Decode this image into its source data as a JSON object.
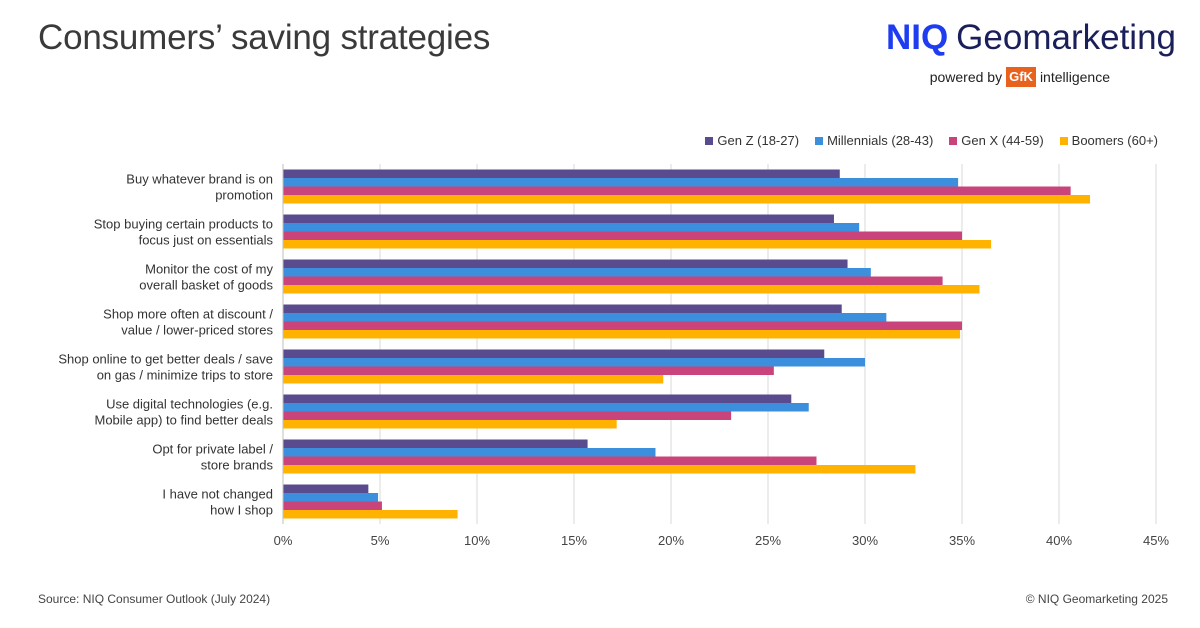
{
  "header": {
    "title": "Consumers’ saving strategies",
    "brand_niq": "NIQ",
    "brand_name": "Geomarketing",
    "powered_by": "powered by",
    "gfk": "GfK",
    "intelligence": "intelligence"
  },
  "footer": {
    "source": "Source: NIQ Consumer Outlook (July 2024)",
    "copyright": "© NIQ Geomarketing 2025"
  },
  "chart_data": {
    "type": "bar",
    "orientation": "horizontal",
    "title": "Consumers’ saving strategies",
    "xlabel": "",
    "ylabel": "",
    "xlim": [
      0,
      45
    ],
    "x_ticks": [
      "0%",
      "5%",
      "10%",
      "15%",
      "20%",
      "25%",
      "30%",
      "35%",
      "40%",
      "45%"
    ],
    "grid": true,
    "legend_position": "top-right",
    "categories": [
      [
        "Buy whatever brand is on",
        "promotion"
      ],
      [
        "Stop buying certain products to",
        "focus just on essentials"
      ],
      [
        "Monitor the cost of my",
        "overall basket of goods"
      ],
      [
        "Shop more often at discount /",
        "value / lower-priced stores"
      ],
      [
        "Shop online to get better deals / save",
        "on gas / minimize trips to store"
      ],
      [
        "Use digital technologies (e.g.",
        "Mobile app) to find better deals"
      ],
      [
        "Opt for private label /",
        "store brands"
      ],
      [
        "I have not changed",
        "how I shop"
      ]
    ],
    "series": [
      {
        "name": "Gen Z (18-27)",
        "color": "#5a4a8e",
        "values": [
          28.7,
          28.4,
          29.1,
          28.8,
          27.9,
          26.2,
          15.7,
          4.4
        ]
      },
      {
        "name": "Millennials (28-43)",
        "color": "#3b8fdc",
        "values": [
          34.8,
          29.7,
          30.3,
          31.1,
          30.0,
          27.1,
          19.2,
          4.9
        ]
      },
      {
        "name": "Gen X (44-59)",
        "color": "#c8447a",
        "values": [
          40.6,
          35.0,
          34.0,
          35.0,
          25.3,
          23.1,
          27.5,
          5.1
        ]
      },
      {
        "name": "Boomers (60+)",
        "color": "#ffb300",
        "values": [
          41.6,
          36.5,
          35.9,
          34.9,
          19.6,
          17.2,
          32.6,
          9.0
        ]
      }
    ]
  }
}
